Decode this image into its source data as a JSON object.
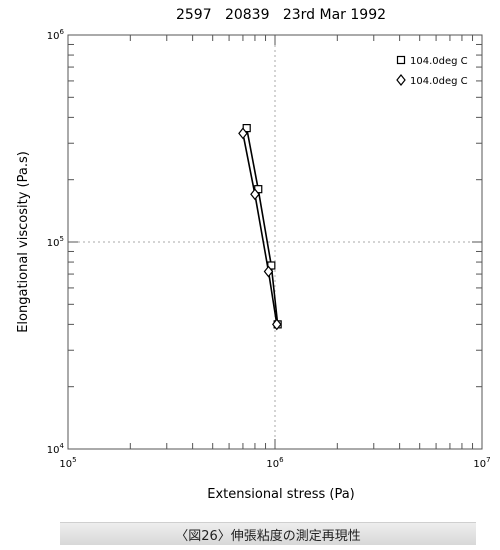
{
  "chart_data": {
    "type": "line",
    "title": "2597   20839   23rd Mar 1992",
    "xlabel": "Extensional stress (Pa)",
    "ylabel": "Elongational viscosity (Pa.s)",
    "x_scale": "log",
    "y_scale": "log",
    "xlim": [
      100000,
      10000000
    ],
    "ylim": [
      10000,
      1000000
    ],
    "x_ticks": [
      {
        "base": "10",
        "exp": "5"
      },
      {
        "base": "10",
        "exp": "6"
      },
      {
        "base": "10",
        "exp": "7"
      }
    ],
    "y_ticks": [
      {
        "base": "10",
        "exp": "4"
      },
      {
        "base": "10",
        "exp": "5"
      },
      {
        "base": "10",
        "exp": "6"
      }
    ],
    "grid": "dotted at major decades",
    "legend_position": "top-right",
    "series": [
      {
        "name": "104.0deg C",
        "marker": "square",
        "points": [
          [
            730000,
            355000
          ],
          [
            830000,
            180000
          ],
          [
            960000,
            77000
          ],
          [
            1030000,
            40000
          ]
        ]
      },
      {
        "name": "104.0deg C",
        "marker": "diamond",
        "points": [
          [
            700000,
            335000
          ],
          [
            800000,
            170000
          ],
          [
            930000,
            72000
          ],
          [
            1020000,
            40000
          ]
        ]
      }
    ]
  },
  "caption": "〈図26〉伸張粘度の測定再現性",
  "colors": {
    "line": "#000000",
    "grid": "#aaaaaa",
    "caption_bg": "#e2e2e2"
  }
}
